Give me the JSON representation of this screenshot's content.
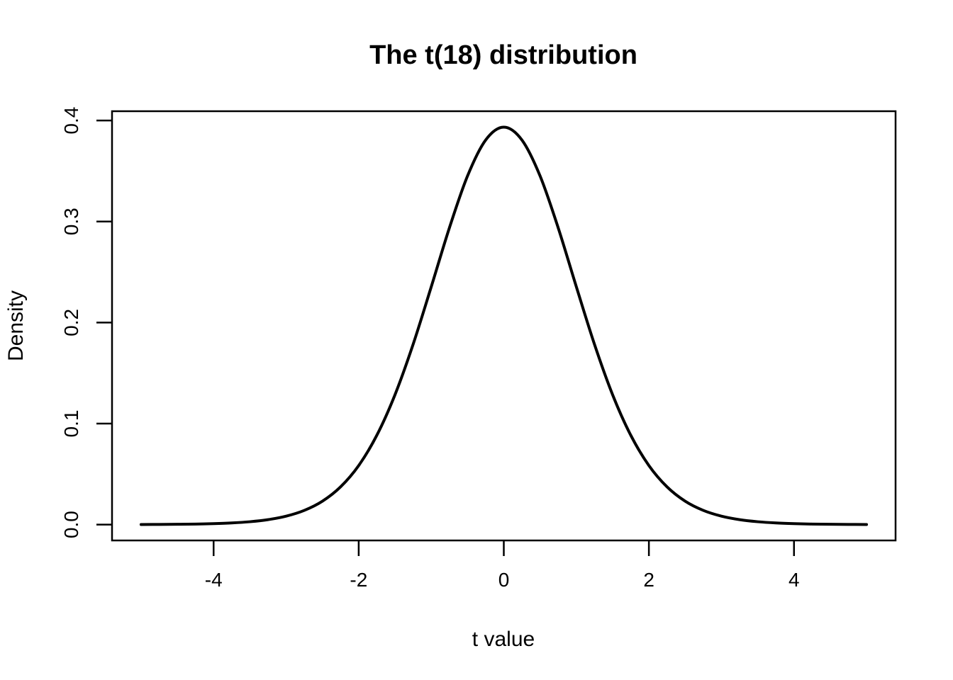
{
  "figure": {
    "background": "#ffffff",
    "foreground": "#000000"
  },
  "chart_data": {
    "type": "line",
    "title": "The t(18) distribution",
    "xlabel": "t value",
    "ylabel": "Density",
    "grid": false,
    "legend": "none",
    "line_color": "#000000",
    "background": "#ffffff",
    "xlim": [
      -5.4,
      5.4
    ],
    "ylim": [
      -0.0157,
      0.4092
    ],
    "x_ticks": [
      -4,
      -2,
      0,
      2,
      4
    ],
    "x_tick_labels": [
      "-4",
      "-2",
      "0",
      "2",
      "4"
    ],
    "y_ticks": [
      0.0,
      0.1,
      0.2,
      0.3,
      0.4
    ],
    "y_tick_labels": [
      "0.0",
      "0.1",
      "0.2",
      "0.3",
      "0.4"
    ],
    "series": [
      {
        "name": "t(18) density",
        "df": 18,
        "peak_density": 0.39344,
        "x": [
          -5,
          -4.75,
          -4.5,
          -4.25,
          -4,
          -3.75,
          -3.5,
          -3.25,
          -3,
          -2.75,
          -2.5,
          -2.25,
          -2,
          -1.75,
          -1.5,
          -1.25,
          -1,
          -0.75,
          -0.5,
          -0.25,
          0,
          0.25,
          0.5,
          0.75,
          1,
          1.25,
          1.5,
          1.75,
          2,
          2.25,
          2.5,
          2.75,
          3,
          3.25,
          3.5,
          3.75,
          4,
          4.25,
          4.5,
          4.75,
          5
        ],
        "y": [
          0.000101,
          0.000175,
          0.000306,
          0.000535,
          0.000935,
          0.00163,
          0.002838,
          0.004894,
          0.008358,
          0.014052,
          0.02318,
          0.03736,
          0.05847,
          0.08844,
          0.12851,
          0.17843,
          0.2354,
          0.29371,
          0.34512,
          0.3807,
          0.39344,
          0.3807,
          0.34512,
          0.29371,
          0.2354,
          0.17843,
          0.12851,
          0.08844,
          0.05847,
          0.03736,
          0.02318,
          0.014052,
          0.008358,
          0.004894,
          0.002838,
          0.00163,
          0.000935,
          0.000535,
          0.000306,
          0.000175,
          0.000101
        ]
      }
    ]
  }
}
